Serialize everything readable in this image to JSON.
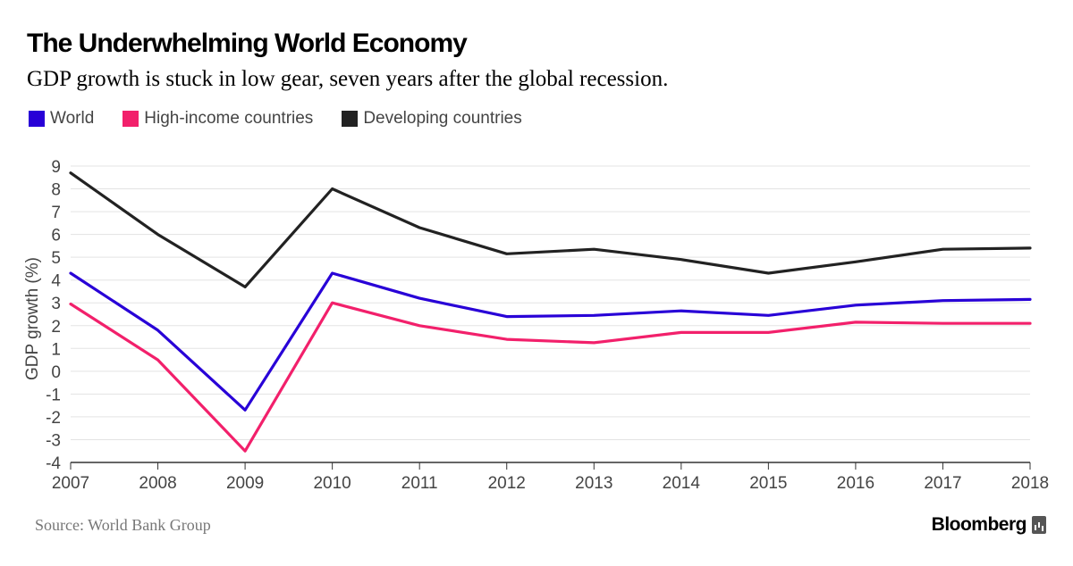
{
  "header": {
    "title": "The Underwhelming World Economy",
    "subtitle": "GDP growth is stuck in low gear, seven years after the global recession."
  },
  "footer": {
    "source": "Source: World Bank Group",
    "brand": "Bloomberg",
    "brand_icon": "bar-chart-icon"
  },
  "chart_data": {
    "type": "line",
    "title": "The Underwhelming World Economy",
    "subtitle": "GDP growth is stuck in low gear, seven years after the global recession.",
    "xlabel": "",
    "ylabel": "GDP growth (%)",
    "x": [
      "2007",
      "2008",
      "2009",
      "2010",
      "2011",
      "2012",
      "2013",
      "2014",
      "2015",
      "2016",
      "2017",
      "2018"
    ],
    "ylim": [
      -4,
      9
    ],
    "yticks": [
      "9",
      "8",
      "7",
      "6",
      "5",
      "4",
      "3",
      "2",
      "1",
      "0",
      "-1",
      "-2",
      "-3",
      "-4"
    ],
    "grid": true,
    "legend_position": "top-left",
    "series": [
      {
        "name": "World",
        "color": "#2800d7",
        "values": [
          4.3,
          1.8,
          -1.7,
          4.3,
          3.2,
          2.4,
          2.45,
          2.65,
          2.45,
          2.9,
          3.1,
          3.15
        ]
      },
      {
        "name": "High-income countries",
        "color": "#f2206b",
        "values": [
          2.95,
          0.5,
          -3.5,
          3.0,
          2.0,
          1.4,
          1.25,
          1.7,
          1.7,
          2.15,
          2.1,
          2.1
        ]
      },
      {
        "name": "Developing countries",
        "color": "#222222",
        "values": [
          8.7,
          6.0,
          3.7,
          8.0,
          6.3,
          5.15,
          5.35,
          4.9,
          4.3,
          4.8,
          5.35,
          5.4
        ]
      }
    ]
  }
}
